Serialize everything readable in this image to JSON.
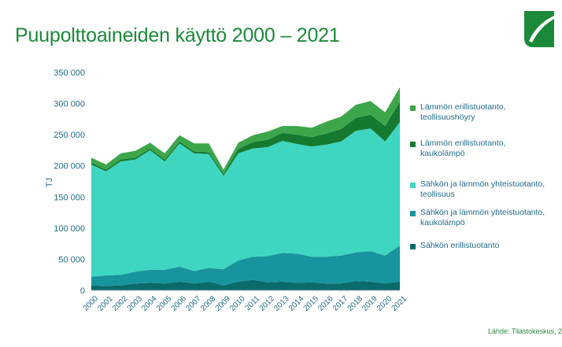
{
  "title": "Puupolttoaineiden käyttö 2000 – 2021",
  "source": "Lähde: Tilastokeskus, 2",
  "logo": {
    "icon": "leaf-logo-icon",
    "color": "#1a8a3a"
  },
  "chart_data": {
    "type": "area",
    "stacked": true,
    "title": "Puupolttoaineiden käyttö 2000 – 2021",
    "ylabel": "TJ",
    "xlabel": "",
    "ylim": [
      0,
      350000
    ],
    "yticks": [
      0,
      50000,
      100000,
      150000,
      200000,
      250000,
      300000,
      350000
    ],
    "ytick_labels": [
      "0",
      "50 000",
      "100 000",
      "150 000",
      "200 000",
      "250 000",
      "300 000",
      "350 000"
    ],
    "grid": false,
    "legend_position": "right",
    "x": [
      "2000",
      "2001",
      "2002",
      "2003",
      "2004",
      "2005",
      "2006",
      "2007",
      "2008",
      "2009",
      "2010",
      "2011",
      "2012",
      "2013",
      "2014",
      "2015",
      "2016",
      "2017",
      "2018",
      "2019",
      "2020",
      "2021"
    ],
    "series": [
      {
        "name": "Sähkön erillistuotanto",
        "color": "#0a6b6b",
        "values": [
          8000,
          7000,
          8000,
          11000,
          12000,
          11000,
          14000,
          11000,
          14000,
          8000,
          14000,
          17000,
          13000,
          14000,
          12000,
          13000,
          11000,
          11000,
          15000,
          14000,
          11000,
          14000
        ]
      },
      {
        "name": "Sähkön ja lämmön yhteistuotanto, kaukolämpö",
        "color": "#18949e",
        "values": [
          14000,
          17000,
          17000,
          19000,
          21000,
          22000,
          24000,
          20000,
          22000,
          26000,
          34000,
          37000,
          42000,
          46000,
          47000,
          41000,
          43000,
          45000,
          46000,
          49000,
          45000,
          58000
        ]
      },
      {
        "name": "Sähkön ja lämmön yhteistuotanto, teollisuus",
        "color": "#3ed6c0",
        "values": [
          180000,
          167000,
          182000,
          180000,
          192000,
          174000,
          198000,
          189000,
          183000,
          150000,
          172000,
          174000,
          175000,
          180000,
          176000,
          177000,
          180000,
          183000,
          195000,
          197000,
          183000,
          198000
        ]
      },
      {
        "name": "Lämmön erillistuotanto, kaukolämpö",
        "color": "#157a30",
        "values": [
          3000,
          3000,
          3000,
          3000,
          3000,
          3000,
          3000,
          3000,
          3000,
          3000,
          7000,
          10000,
          12000,
          13000,
          15000,
          15000,
          18000,
          20000,
          21000,
          22000,
          25000,
          33000
        ]
      },
      {
        "name": "Lämmön erillistuotanto, teollisuushöyry",
        "color": "#3ea64a",
        "values": [
          8000,
          8000,
          10000,
          11000,
          9000,
          10000,
          10000,
          13000,
          14000,
          7000,
          10000,
          11000,
          13000,
          11000,
          14000,
          15000,
          19000,
          20000,
          21000,
          22000,
          22000,
          23000
        ]
      }
    ]
  }
}
